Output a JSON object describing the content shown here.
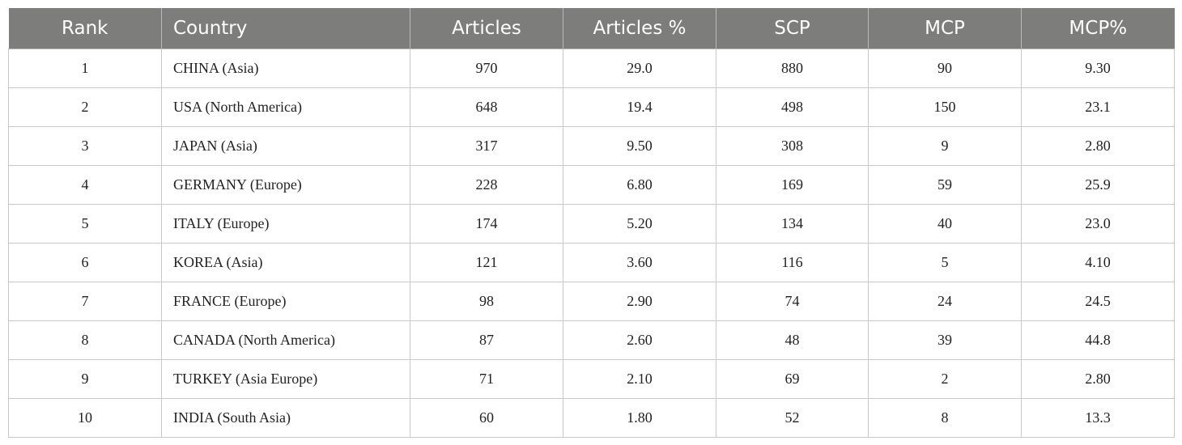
{
  "table": {
    "headers": [
      "Rank",
      "Country",
      "Articles",
      "Articles %",
      "SCP",
      "MCP",
      "MCP%"
    ],
    "rows": [
      [
        "1",
        "CHINA (Asia)",
        "970",
        "29.0",
        "880",
        "90",
        "9.30"
      ],
      [
        "2",
        "USA (North America)",
        "648",
        "19.4",
        "498",
        "150",
        "23.1"
      ],
      [
        "3",
        "JAPAN (Asia)",
        "317",
        "9.50",
        "308",
        "9",
        "2.80"
      ],
      [
        "4",
        "GERMANY (Europe)",
        "228",
        "6.80",
        "169",
        "59",
        "25.9"
      ],
      [
        "5",
        "ITALY (Europe)",
        "174",
        "5.20",
        "134",
        "40",
        "23.0"
      ],
      [
        "6",
        "KOREA (Asia)",
        "121",
        "3.60",
        "116",
        "5",
        "4.10"
      ],
      [
        "7",
        "FRANCE (Europe)",
        "98",
        "2.90",
        "74",
        "24",
        "24.5"
      ],
      [
        "8",
        "CANADA (North America)",
        "87",
        "2.60",
        "48",
        "39",
        "44.8"
      ],
      [
        "9",
        "TURKEY (Asia Europe)",
        "71",
        "2.10",
        "69",
        "2",
        "2.80"
      ],
      [
        "10",
        "INDIA (South Asia)",
        "60",
        "1.80",
        "52",
        "8",
        "13.3"
      ]
    ]
  },
  "colors": {
    "header_background": "#7d7d7c",
    "header_text": "#ffffff",
    "grid_line": "#c9c9c9"
  }
}
